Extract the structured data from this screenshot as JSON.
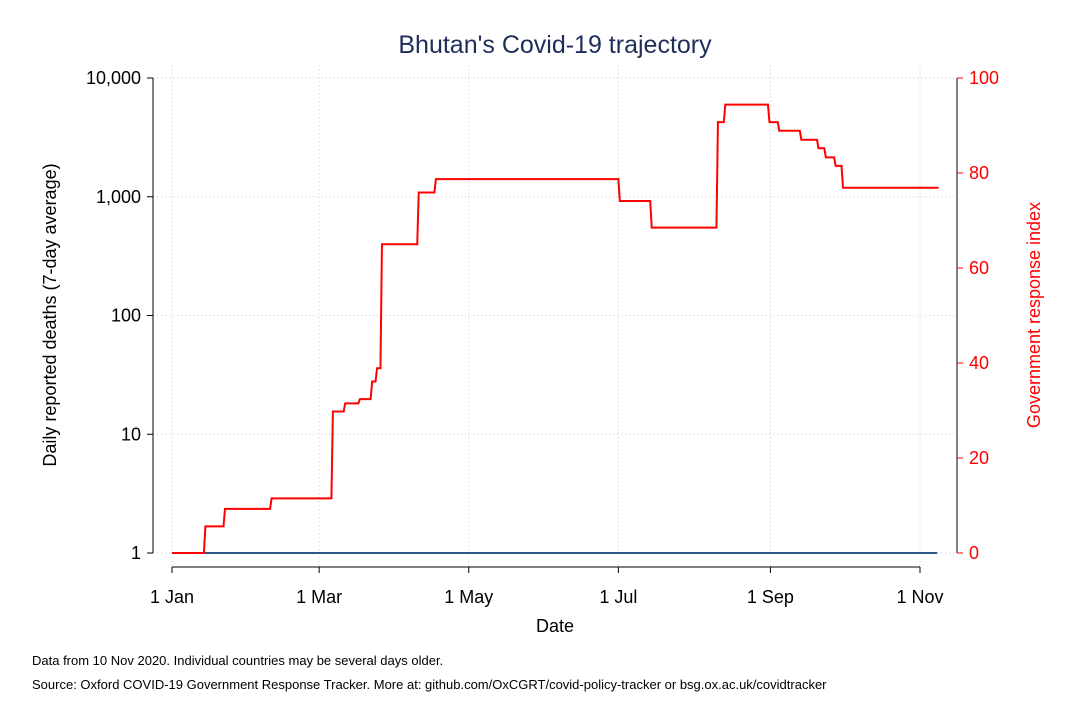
{
  "chart_data": {
    "type": "line",
    "title": "Bhutan's Covid-19 trajectory",
    "xlabel": "Date",
    "ylabel_left": "Daily reported deaths (7-day average)",
    "ylabel_right": "Government response index",
    "y_left_scale": "log",
    "y_left_range": [
      1,
      10000
    ],
    "y_right_range": [
      0,
      100
    ],
    "x_range": [
      "2020-01-01",
      "2020-11-10"
    ],
    "x_ticks": [
      {
        "date": "2020-01-01",
        "label": "1 Jan"
      },
      {
        "date": "2020-03-01",
        "label": "1 Mar"
      },
      {
        "date": "2020-05-01",
        "label": "1 May"
      },
      {
        "date": "2020-07-01",
        "label": "1 Jul"
      },
      {
        "date": "2020-09-01",
        "label": "1 Sep"
      },
      {
        "date": "2020-11-01",
        "label": "1 Nov"
      }
    ],
    "y_left_ticks": [
      {
        "value": 1,
        "label": "1"
      },
      {
        "value": 10,
        "label": "10"
      },
      {
        "value": 100,
        "label": "100"
      },
      {
        "value": 1000,
        "label": "1,000"
      },
      {
        "value": 10000,
        "label": "10,000"
      }
    ],
    "y_right_ticks": [
      {
        "value": 0,
        "label": "0"
      },
      {
        "value": 20,
        "label": "20"
      },
      {
        "value": 40,
        "label": "40"
      },
      {
        "value": 60,
        "label": "60"
      },
      {
        "value": 80,
        "label": "80"
      },
      {
        "value": 100,
        "label": "100"
      }
    ],
    "grid": true,
    "series": [
      {
        "axis": "left",
        "color": "#2b5a8a",
        "points": [
          [
            "2020-01-01",
            1
          ],
          [
            "2020-11-08",
            1
          ]
        ]
      },
      {
        "axis": "right",
        "color": "#ff0000",
        "step": true,
        "points": [
          [
            "2020-01-01",
            0
          ],
          [
            "2020-01-14",
            5.6
          ],
          [
            "2020-01-22",
            9.3
          ],
          [
            "2020-02-10",
            11.5
          ],
          [
            "2020-03-06",
            29.8
          ],
          [
            "2020-03-11",
            31.5
          ],
          [
            "2020-03-17",
            32.4
          ],
          [
            "2020-03-22",
            36.1
          ],
          [
            "2020-03-24",
            38.9
          ],
          [
            "2020-03-26",
            65.0
          ],
          [
            "2020-04-10",
            75.9
          ],
          [
            "2020-04-17",
            78.7
          ],
          [
            "2020-07-01",
            74.1
          ],
          [
            "2020-07-14",
            68.5
          ],
          [
            "2020-08-10",
            90.7
          ],
          [
            "2020-08-13",
            94.4
          ],
          [
            "2020-08-31",
            90.7
          ],
          [
            "2020-09-04",
            88.9
          ],
          [
            "2020-09-13",
            87.0
          ],
          [
            "2020-09-20",
            85.2
          ],
          [
            "2020-09-23",
            83.3
          ],
          [
            "2020-09-27",
            81.5
          ],
          [
            "2020-09-30",
            76.9
          ],
          [
            "2020-11-08",
            76.9
          ]
        ]
      }
    ]
  },
  "notes": {
    "line1": "Data from 10 Nov 2020. Individual countries may be several days older.",
    "line2": "Source: Oxford COVID-19 Government Response Tracker. More at: github.com/OxCGRT/covid-policy-tracker or bsg.ox.ac.uk/covidtracker"
  }
}
